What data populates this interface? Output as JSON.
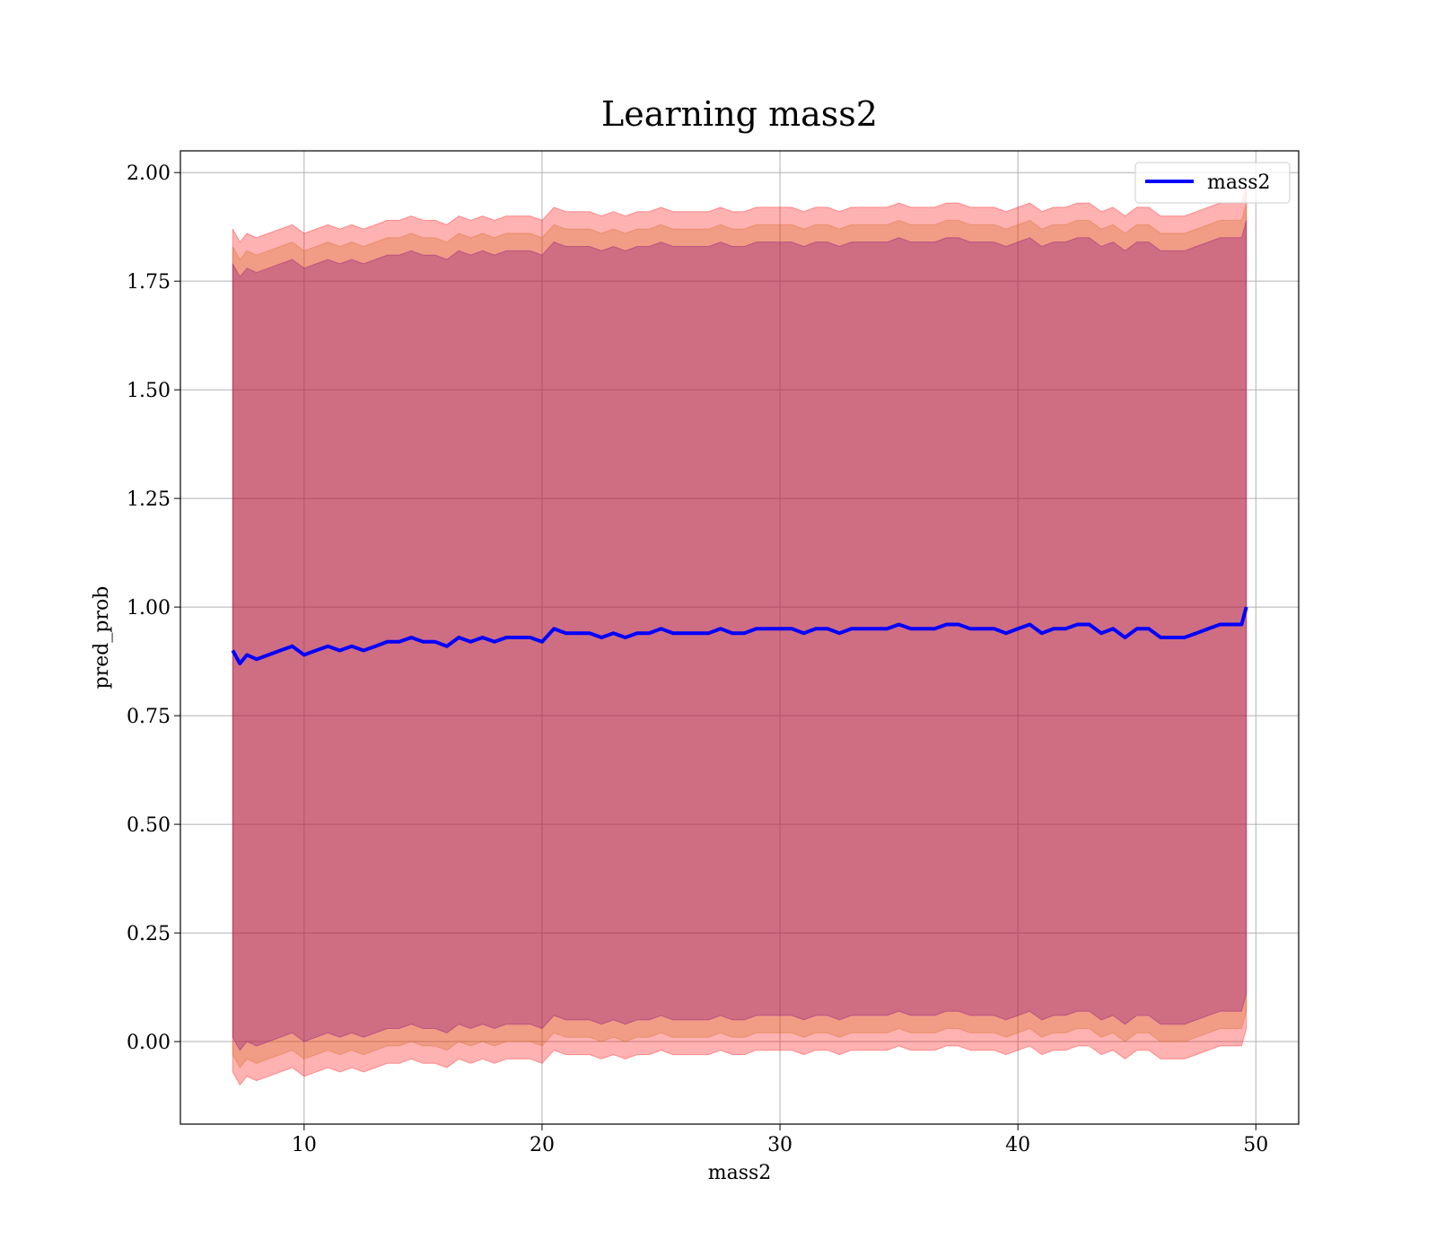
{
  "chart_data": {
    "type": "line",
    "title": "Learning mass2",
    "xlabel": "mass2",
    "ylabel": "pred_prob",
    "xlim": [
      4.8,
      51.8
    ],
    "ylim": [
      -0.19,
      2.05
    ],
    "xticks": [
      10,
      20,
      30,
      40,
      50
    ],
    "xtick_labels": [
      "10",
      "20",
      "30",
      "40",
      "50"
    ],
    "yticks": [
      0.0,
      0.25,
      0.5,
      0.75,
      1.0,
      1.25,
      1.5,
      1.75,
      2.0
    ],
    "ytick_labels": [
      "0.00",
      "0.25",
      "0.50",
      "0.75",
      "1.00",
      "1.25",
      "1.50",
      "1.75",
      "2.00"
    ],
    "grid": true,
    "legend_position": "top-right",
    "colors": {
      "line": "#0000ff",
      "band_outer": "#ff0000",
      "band_middle": "#d2691e",
      "band_inner": "#800080"
    },
    "band_offsets": [
      0.97,
      0.93,
      0.89
    ],
    "series": [
      {
        "name": "mass2",
        "x": [
          7.0,
          7.3,
          7.6,
          8.0,
          8.5,
          9.0,
          9.5,
          10.0,
          10.5,
          11.0,
          11.5,
          12.0,
          12.5,
          13.0,
          13.5,
          14.0,
          14.5,
          15.0,
          15.5,
          16.0,
          16.5,
          17.0,
          17.5,
          18.0,
          18.5,
          19.0,
          19.5,
          20.0,
          20.5,
          21.0,
          21.5,
          22.0,
          22.5,
          23.0,
          23.5,
          24.0,
          24.5,
          25.0,
          25.5,
          26.0,
          26.5,
          27.0,
          27.5,
          28.0,
          28.5,
          29.0,
          29.5,
          30.0,
          30.5,
          31.0,
          31.5,
          32.0,
          32.5,
          33.0,
          33.5,
          34.0,
          34.5,
          35.0,
          35.5,
          36.0,
          36.5,
          37.0,
          37.5,
          38.0,
          38.5,
          39.0,
          39.5,
          40.0,
          40.5,
          41.0,
          41.5,
          42.0,
          42.5,
          43.0,
          43.5,
          44.0,
          44.5,
          45.0,
          45.5,
          46.0,
          46.5,
          47.0,
          47.5,
          48.0,
          48.5,
          49.0,
          49.4,
          49.6
        ],
        "y": [
          0.9,
          0.87,
          0.89,
          0.88,
          0.89,
          0.9,
          0.91,
          0.89,
          0.9,
          0.91,
          0.9,
          0.91,
          0.9,
          0.91,
          0.92,
          0.92,
          0.93,
          0.92,
          0.92,
          0.91,
          0.93,
          0.92,
          0.93,
          0.92,
          0.93,
          0.93,
          0.93,
          0.92,
          0.95,
          0.94,
          0.94,
          0.94,
          0.93,
          0.94,
          0.93,
          0.94,
          0.94,
          0.95,
          0.94,
          0.94,
          0.94,
          0.94,
          0.95,
          0.94,
          0.94,
          0.95,
          0.95,
          0.95,
          0.95,
          0.94,
          0.95,
          0.95,
          0.94,
          0.95,
          0.95,
          0.95,
          0.95,
          0.96,
          0.95,
          0.95,
          0.95,
          0.96,
          0.96,
          0.95,
          0.95,
          0.95,
          0.94,
          0.95,
          0.96,
          0.94,
          0.95,
          0.95,
          0.96,
          0.96,
          0.94,
          0.95,
          0.93,
          0.95,
          0.95,
          0.93,
          0.93,
          0.93,
          0.94,
          0.95,
          0.96,
          0.96,
          0.96,
          1.0
        ]
      }
    ]
  }
}
